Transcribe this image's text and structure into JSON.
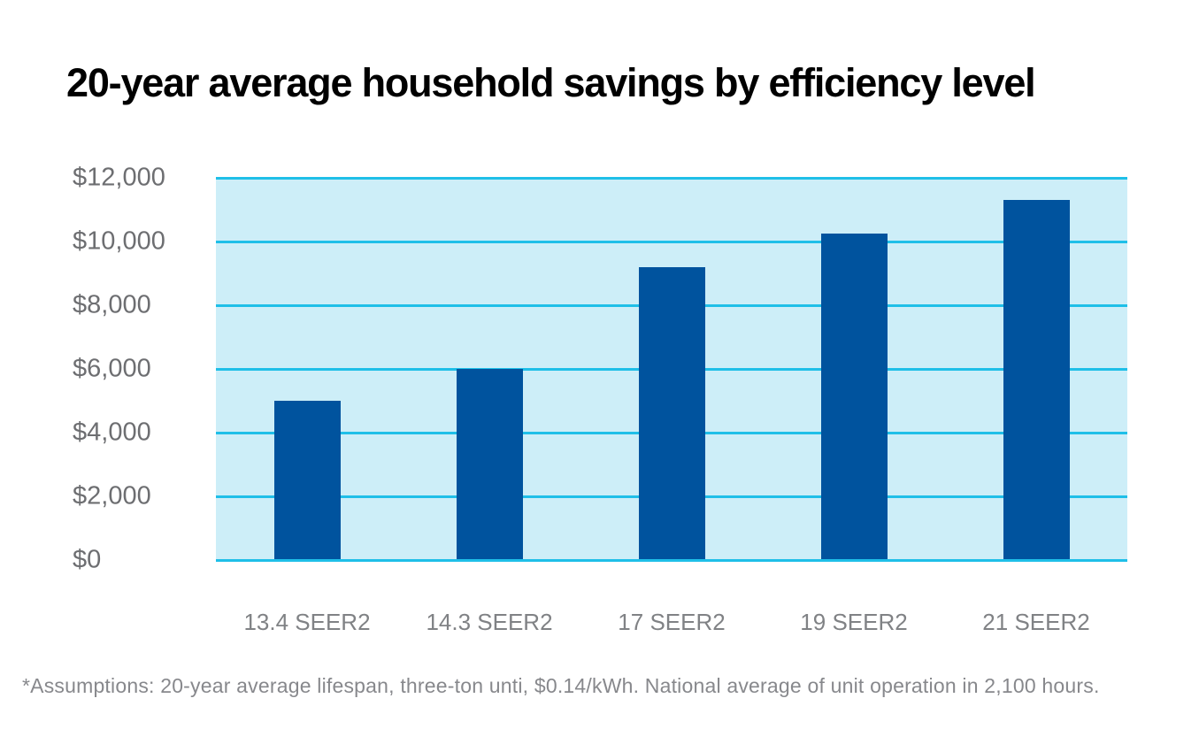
{
  "page": {
    "title": "20-year average household savings by efficiency level",
    "footnote": "*Assumptions: 20-year average lifespan, three-ton unti, $0.14/kWh. National average of unit operation in 2,100 hours."
  },
  "chart_data": {
    "type": "bar",
    "title": "20-year average household savings by efficiency level",
    "categories": [
      "13.4 SEER2",
      "14.3 SEER2",
      "17 SEER2",
      "19 SEER2",
      "21 SEER2"
    ],
    "values": [
      5000,
      6000,
      9200,
      10250,
      11300
    ],
    "xlabel": "",
    "ylabel": "",
    "ylim": [
      0,
      12000
    ],
    "ytick_step": 2000,
    "ytick_labels": [
      "$0",
      "$2,000",
      "$4,000",
      "$6,000",
      "$8,000",
      "$10,000",
      "$12,000"
    ],
    "grid": true,
    "legend_position": "none",
    "annotations": [
      "*Assumptions: 20-year average lifespan, three-ton unti, $0.14/kWh. National average of unit operation in 2,100 hours."
    ],
    "colors": {
      "bar": "#00539e",
      "plot_background": "#cdeef8",
      "gridline": "#1fbfe8",
      "title_text": "#000000",
      "axis_tick_text": "#6d6e71",
      "category_text": "#808285",
      "footnote_text": "#87888c",
      "page_background": "#ffffff"
    }
  }
}
